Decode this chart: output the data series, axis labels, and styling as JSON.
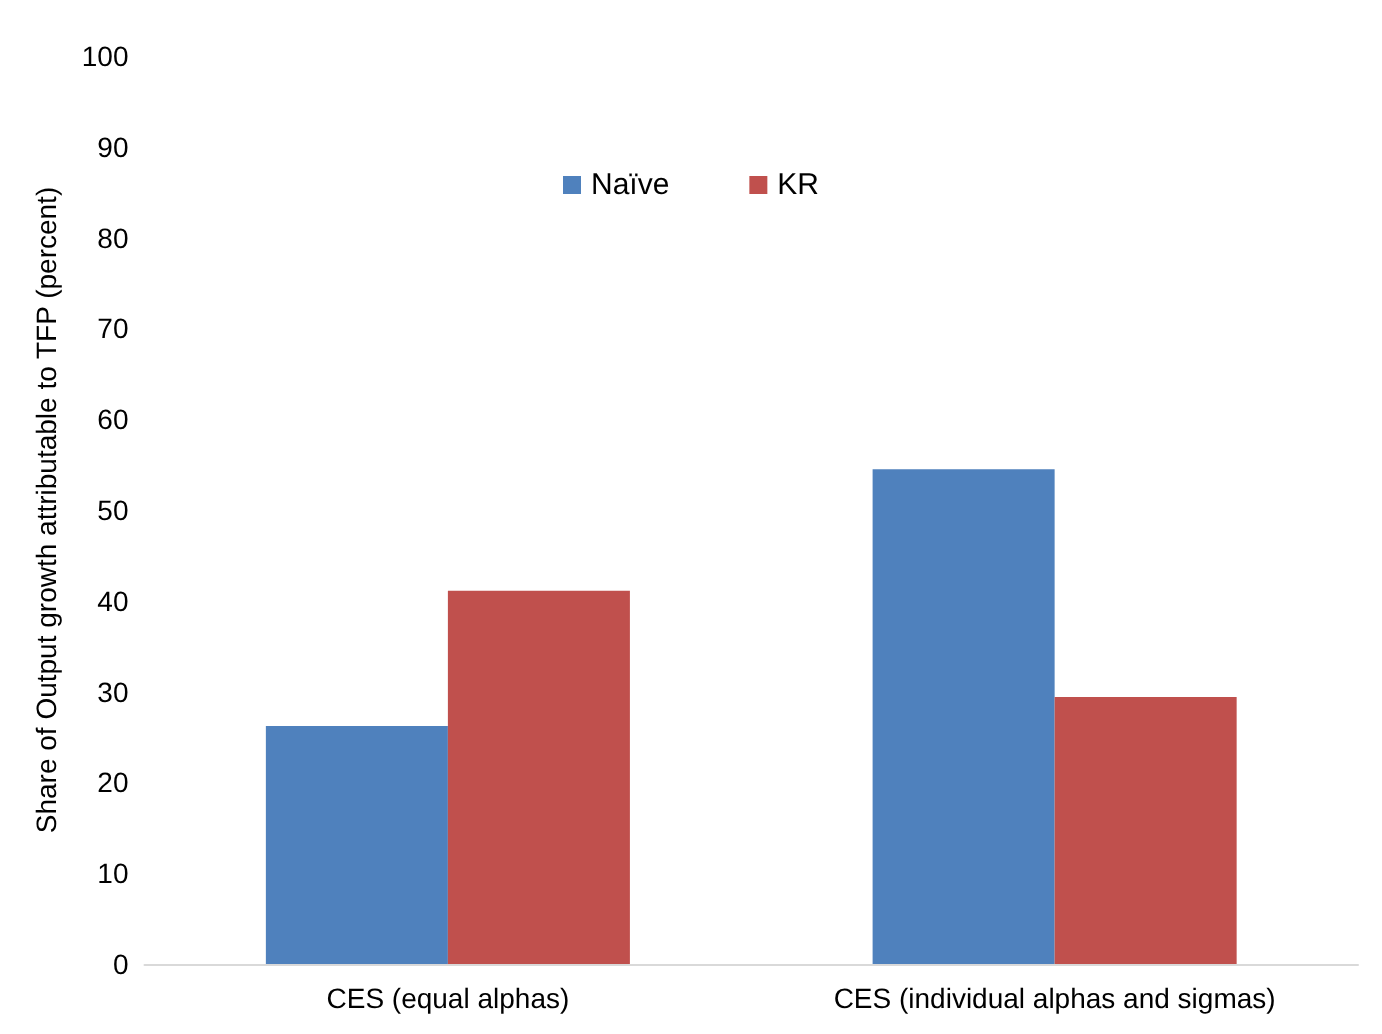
{
  "chart_data": {
    "type": "bar",
    "ylabel": "Share of Output growth attributable to TFP (percent)",
    "categories": [
      "CES (equal alphas)",
      "CES (individual alphas and sigmas)"
    ],
    "series": [
      {
        "name": "Naïve",
        "color": "#4f81bd",
        "values": [
          26.2,
          54.5
        ]
      },
      {
        "name": "KR",
        "color": "#c0504d",
        "values": [
          41.1,
          29.4
        ]
      }
    ],
    "ylim": [
      0,
      100
    ],
    "yticks": [
      0,
      10,
      20,
      30,
      40,
      50,
      60,
      70,
      80,
      90,
      100
    ],
    "grid": false,
    "legend": "top"
  }
}
